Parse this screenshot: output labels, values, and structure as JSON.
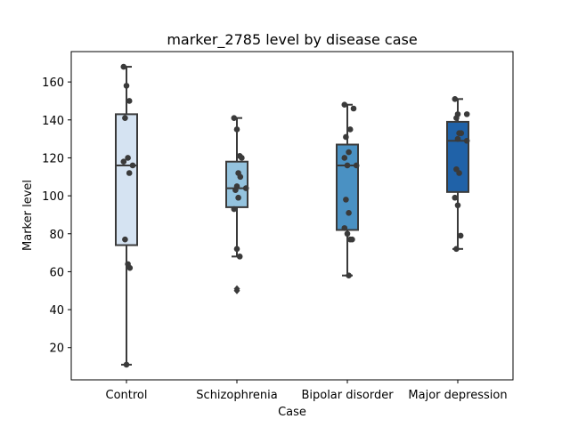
{
  "chart_data": {
    "type": "box",
    "title": "marker_2785 level by disease case",
    "xlabel": "Case",
    "ylabel": "Marker level",
    "ylim": [
      3,
      176
    ],
    "yticks": [
      20,
      40,
      60,
      80,
      100,
      120,
      140,
      160
    ],
    "grid": false,
    "categories": [
      "Control",
      "Schizophrenia",
      "Bipolar disorder",
      "Major depression"
    ],
    "colors": [
      "#d5e3f2",
      "#94c3de",
      "#4a91c3",
      "#2062a8"
    ],
    "boxes": [
      {
        "category": "Control",
        "q1": 74,
        "median": 116,
        "q3": 143,
        "whisker_low": 11,
        "whisker_high": 168,
        "points": [
          168,
          158,
          150,
          141,
          120,
          118,
          116,
          112,
          77,
          64,
          62,
          11
        ],
        "outliers": []
      },
      {
        "category": "Schizophrenia",
        "q1": 94,
        "median": 104,
        "q3": 118,
        "whisker_low": 68,
        "whisker_high": 141,
        "points": [
          141,
          135,
          121,
          120,
          112,
          110,
          105,
          104,
          103,
          99,
          93,
          72,
          68
        ],
        "outliers": [
          51,
          50
        ]
      },
      {
        "category": "Bipolar disorder",
        "q1": 82,
        "median": 116,
        "q3": 127,
        "whisker_low": 58,
        "whisker_high": 148,
        "points": [
          148,
          146,
          135,
          131,
          123,
          120,
          116,
          116,
          98,
          91,
          83,
          80,
          77,
          77,
          58
        ],
        "outliers": []
      },
      {
        "category": "Major depression",
        "q1": 102,
        "median": 129,
        "q3": 139,
        "whisker_low": 72,
        "whisker_high": 151,
        "points": [
          151,
          143,
          143,
          141,
          133,
          133,
          130,
          129,
          114,
          112,
          99,
          95,
          79,
          72
        ],
        "outliers": []
      }
    ]
  }
}
